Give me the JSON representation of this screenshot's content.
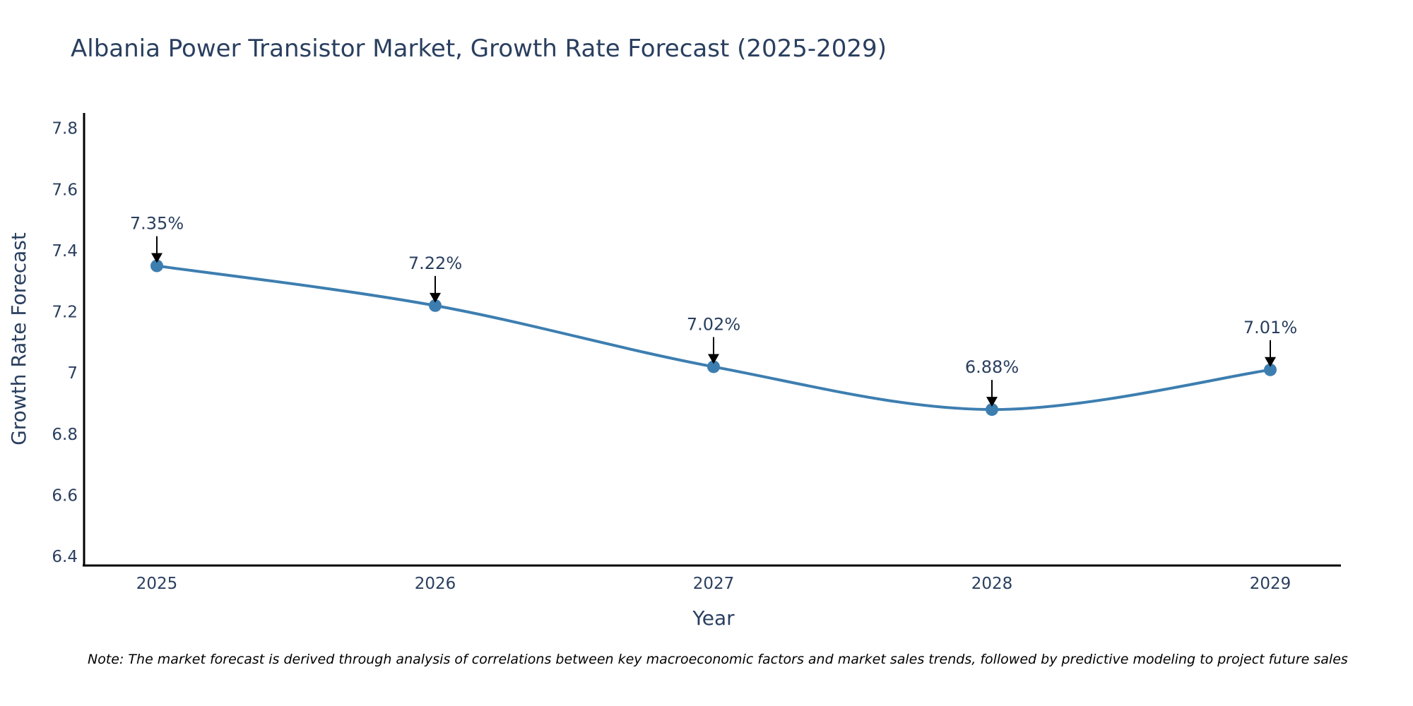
{
  "chart_data": {
    "type": "line",
    "title": "Albania Power Transistor Market, Growth Rate Forecast (2025-2029)",
    "xlabel": "Year",
    "ylabel": "Growth Rate Forecast",
    "x": [
      "2025",
      "2026",
      "2027",
      "2028",
      "2029"
    ],
    "series": [
      {
        "name": "Growth Rate Forecast",
        "values": [
          7.35,
          7.22,
          7.02,
          6.88,
          7.01
        ],
        "color": "#3d7eb0"
      }
    ],
    "annotations": [
      "7.35%",
      "7.22%",
      "7.02%",
      "6.88%",
      "7.01%"
    ],
    "yticks": [
      "6.4",
      "6.6",
      "6.8",
      "7",
      "7.2",
      "7.4",
      "7.6",
      "7.8"
    ],
    "ytick_values": [
      6.4,
      6.6,
      6.8,
      7.0,
      7.2,
      7.4,
      7.6,
      7.8
    ],
    "ylim": [
      6.37,
      7.85
    ],
    "grid": false,
    "line_shape": "spline",
    "note": "Note: The market forecast is derived through analysis of correlations between key macroeconomic factors and market sales trends, followed by predictive modeling to project future sales"
  }
}
